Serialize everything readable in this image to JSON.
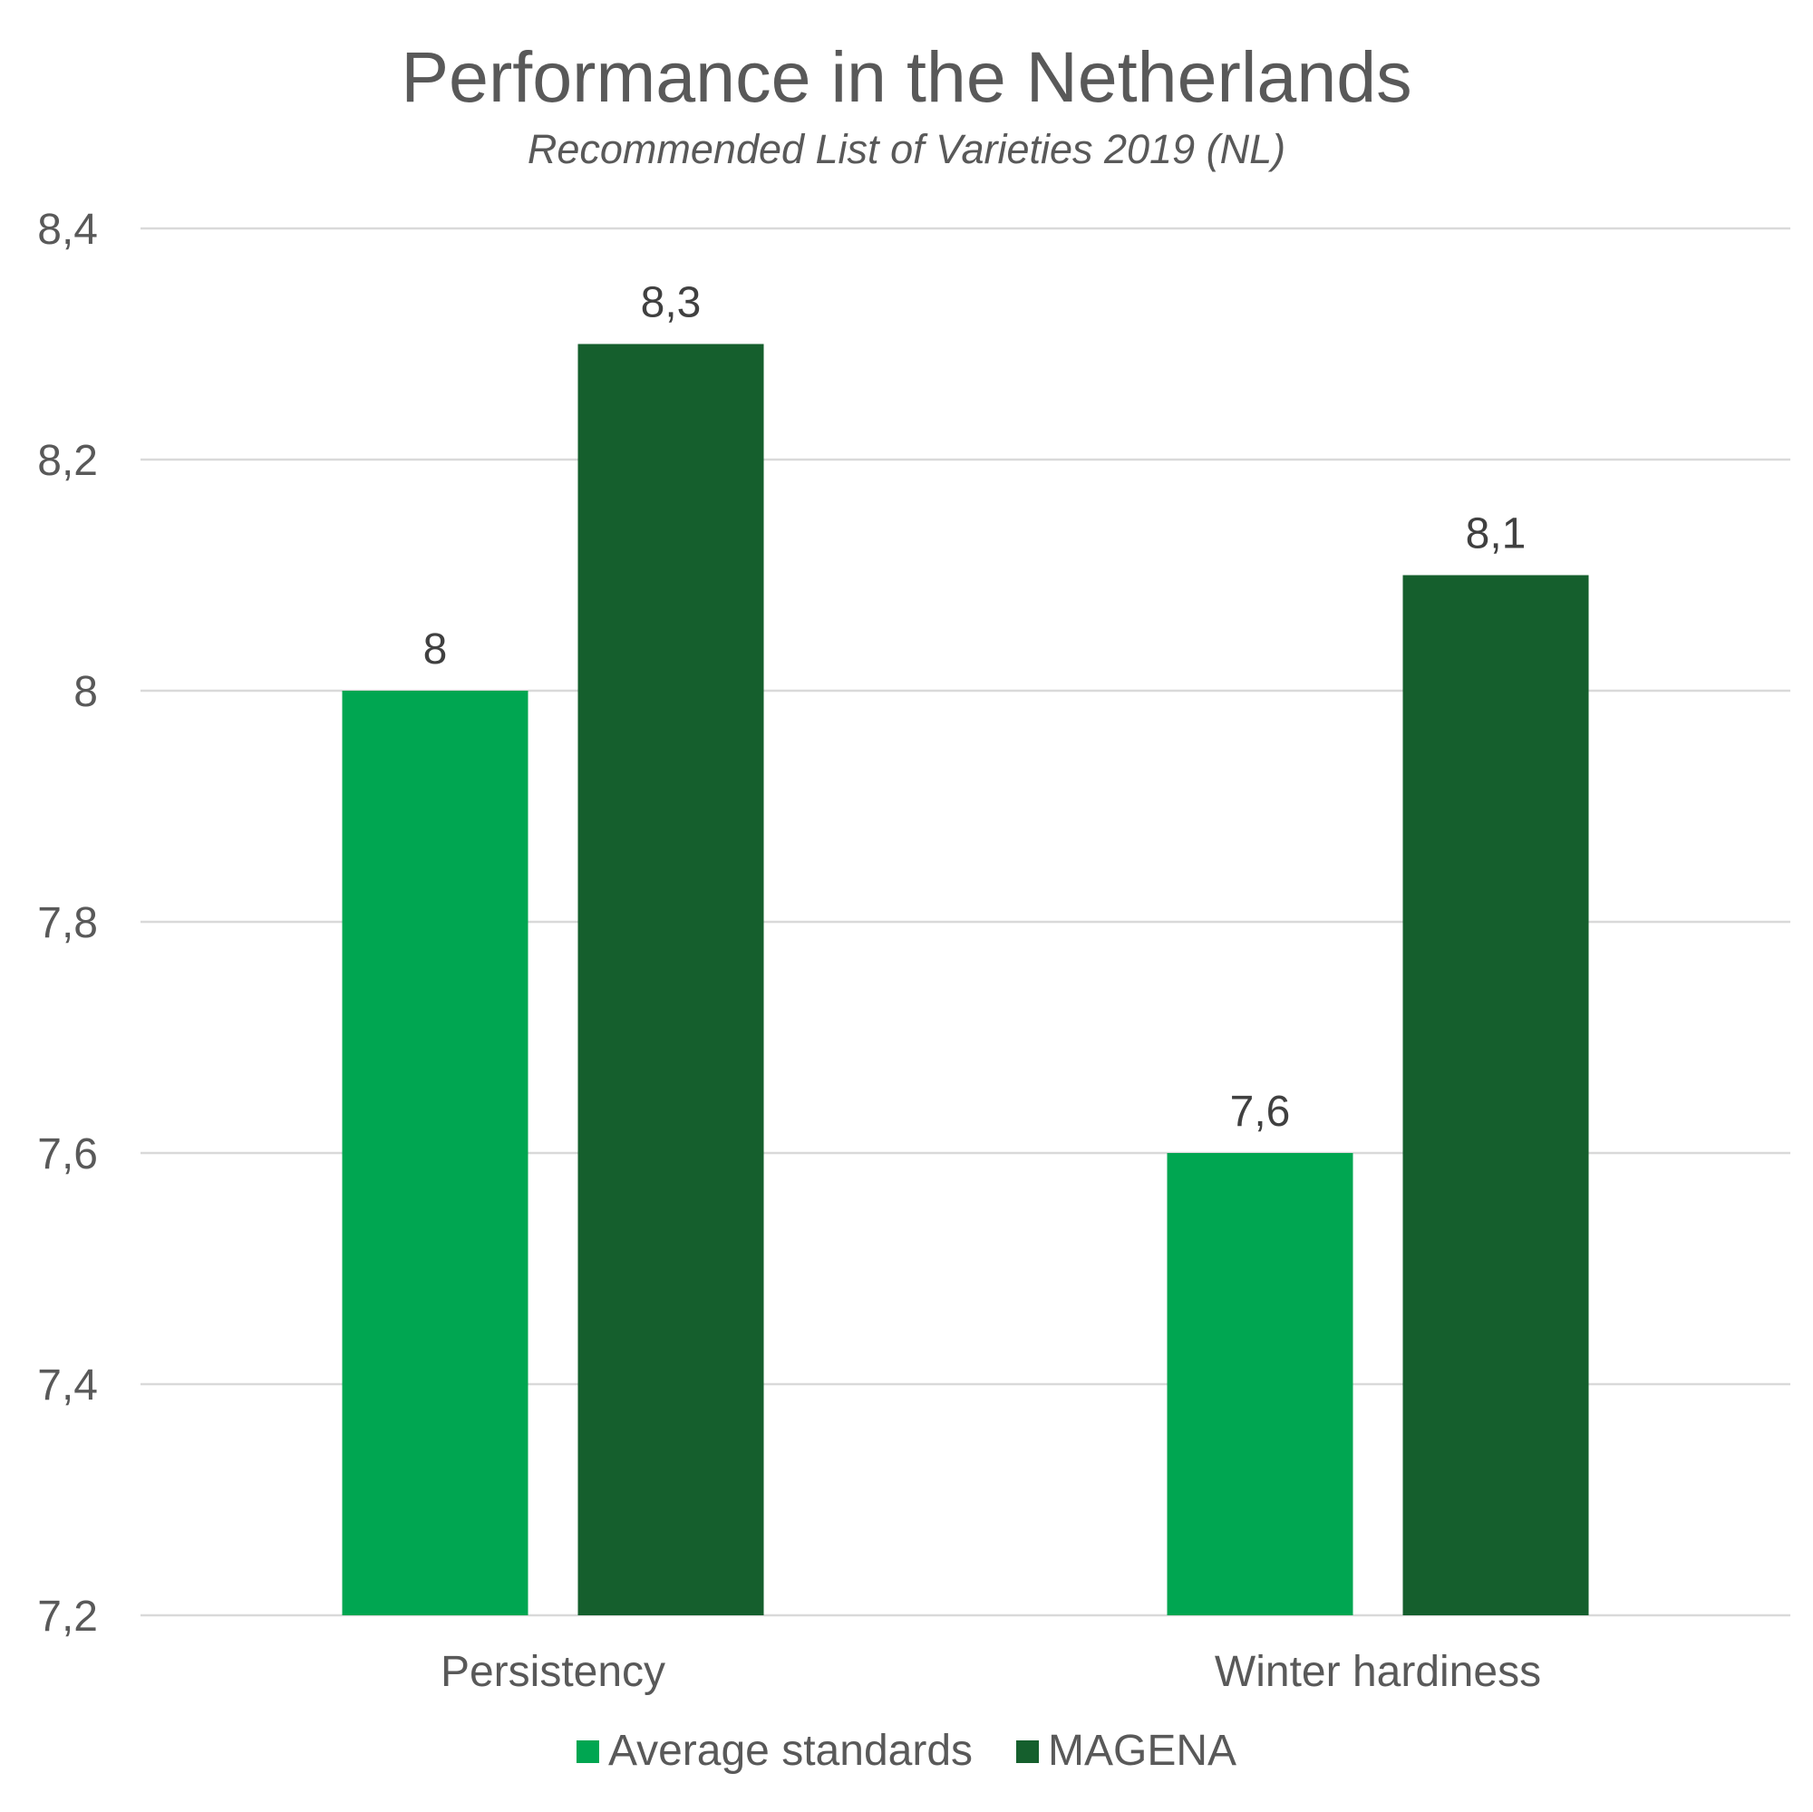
{
  "chart_data": {
    "type": "bar",
    "title": "Performance in the Netherlands",
    "subtitle": "Recommended List of Varieties 2019 (NL)",
    "categories": [
      "Persistency",
      "Winter hardiness"
    ],
    "series": [
      {
        "name": "Average standards",
        "color": "#00a651",
        "values": [
          8,
          7.6
        ],
        "value_labels": [
          "8",
          "7,6"
        ]
      },
      {
        "name": "MAGENA",
        "color": "#155f2d",
        "values": [
          8.3,
          8.1
        ],
        "value_labels": [
          "8,3",
          "8,1"
        ]
      }
    ],
    "xlabel": "",
    "ylabel": "",
    "ylim": [
      7.2,
      8.4
    ],
    "yticks": [
      7.2,
      7.4,
      7.6,
      7.8,
      8,
      8.2,
      8.4
    ],
    "ytick_labels": [
      "7,2",
      "7,4",
      "7,6",
      "7,8",
      "8",
      "8,2",
      "8,4"
    ],
    "grid": true,
    "legend_position": "bottom"
  }
}
